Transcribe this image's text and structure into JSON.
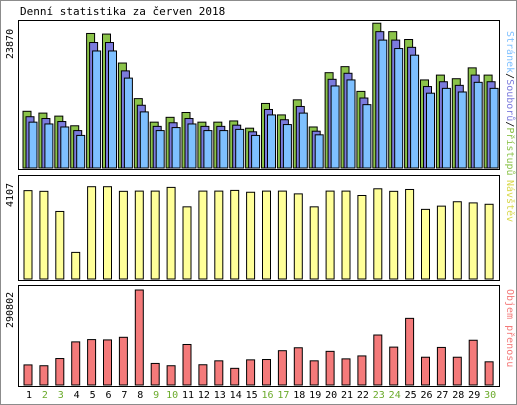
{
  "title": "Denní statistika za červen 2018",
  "colors": {
    "hits": "#8bc34a",
    "files": "#7b7bdd",
    "pages": "#7ec0ff",
    "visits": "#ffff99",
    "kbytes": "#f47a7a",
    "weekend_day_label": "#6aaa2a",
    "normal_day_label": "#000000"
  },
  "panels": {
    "top": {
      "max_label": "23870",
      "legend": {
        "part1": "Stránek",
        "sep1": "/",
        "part2": "Souborů",
        "sep2": "/",
        "part3": "Přístupů"
      }
    },
    "middle": {
      "max_label": "4107",
      "legend": "Návštěv"
    },
    "bottom": {
      "max_label": "290802",
      "legend": "Objem přenosu"
    }
  },
  "chart_data": [
    {
      "type": "bar",
      "categories": [
        "1",
        "2",
        "3",
        "4",
        "5",
        "6",
        "7",
        "8",
        "9",
        "10",
        "11",
        "12",
        "13",
        "14",
        "15",
        "16",
        "17",
        "18",
        "19",
        "20",
        "21",
        "22",
        "23",
        "24",
        "25",
        "26",
        "27",
        "28",
        "29",
        "30"
      ],
      "weekend_days": [
        "2",
        "3",
        "9",
        "10",
        "16",
        "17",
        "23",
        "24",
        "30"
      ],
      "ylim": [
        0,
        23870
      ],
      "series": [
        {
          "name": "Přístupů",
          "values": [
            9400,
            9100,
            8600,
            7000,
            22300,
            22200,
            17400,
            11500,
            7600,
            8400,
            9200,
            7600,
            7600,
            7800,
            6600,
            10700,
            8800,
            11300,
            6800,
            15800,
            16800,
            12700,
            24000,
            22600,
            21300,
            14600,
            15400,
            14800,
            16600,
            15400
          ]
        },
        {
          "name": "Souborů",
          "values": [
            8500,
            8200,
            7700,
            6200,
            20800,
            20800,
            16100,
            10400,
            6900,
            7500,
            8200,
            6900,
            6900,
            7100,
            6000,
            9700,
            8000,
            10200,
            6100,
            14700,
            15700,
            11600,
            22600,
            21200,
            20000,
            13500,
            14300,
            13700,
            15400,
            14300
          ]
        },
        {
          "name": "Stránek",
          "values": [
            7600,
            7300,
            6800,
            5400,
            19400,
            19400,
            14900,
            9300,
            6200,
            6700,
            7300,
            6200,
            6200,
            6400,
            5400,
            8800,
            7200,
            9100,
            5500,
            13600,
            14600,
            10500,
            21200,
            19800,
            18700,
            12400,
            13200,
            12600,
            14200,
            13200
          ]
        }
      ]
    },
    {
      "type": "bar",
      "categories": [
        "1",
        "2",
        "3",
        "4",
        "5",
        "6",
        "7",
        "8",
        "9",
        "10",
        "11",
        "12",
        "13",
        "14",
        "15",
        "16",
        "17",
        "18",
        "19",
        "20",
        "21",
        "22",
        "23",
        "24",
        "25",
        "26",
        "27",
        "28",
        "29",
        "30"
      ],
      "ylim": [
        0,
        4107
      ],
      "series": [
        {
          "name": "Návštěv",
          "values": [
            3820,
            3790,
            2920,
            1150,
            3990,
            3990,
            3790,
            3800,
            3800,
            3960,
            3120,
            3800,
            3800,
            3830,
            3750,
            3800,
            3800,
            3680,
            3120,
            3800,
            3800,
            3610,
            3900,
            3790,
            3870,
            3010,
            3150,
            3340,
            3290,
            3230
          ]
        }
      ]
    },
    {
      "type": "bar",
      "categories": [
        "1",
        "2",
        "3",
        "4",
        "5",
        "6",
        "7",
        "8",
        "9",
        "10",
        "11",
        "12",
        "13",
        "14",
        "15",
        "16",
        "17",
        "18",
        "19",
        "20",
        "21",
        "22",
        "23",
        "24",
        "25",
        "26",
        "27",
        "28",
        "29",
        "30"
      ],
      "ylim": [
        0,
        290802
      ],
      "series": [
        {
          "name": "Objem přenosu",
          "values": [
            61500,
            59000,
            81000,
            132000,
            139000,
            138000,
            146000,
            290802,
            66000,
            59000,
            124000,
            62000,
            74000,
            51000,
            77000,
            78000,
            105000,
            114000,
            74000,
            103000,
            80000,
            89000,
            153000,
            116000,
            204000,
            85000,
            115000,
            85000,
            137000,
            71000
          ]
        }
      ]
    }
  ]
}
